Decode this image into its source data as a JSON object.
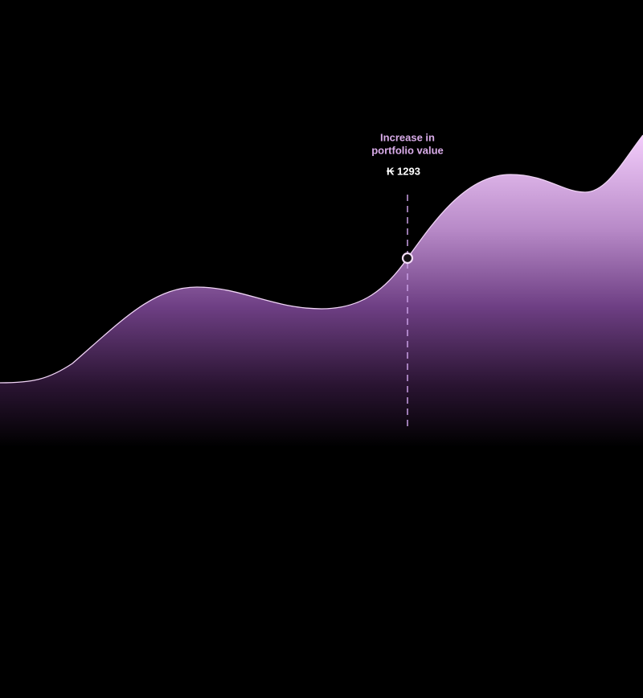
{
  "annotation": {
    "title_lines": [
      "Increase in",
      "portfolio value"
    ],
    "value": "₭ 1293"
  }
}
